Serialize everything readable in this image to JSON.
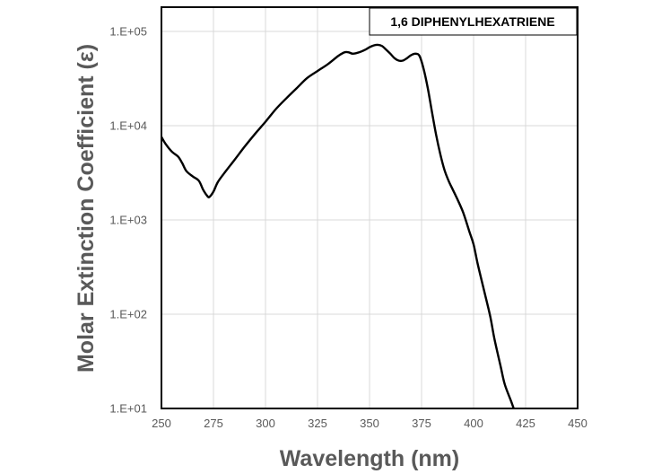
{
  "chart_data": {
    "type": "line",
    "title": "1,6 DIPHENYLHEXATRIENE",
    "xlabel": "Wavelength (nm)",
    "ylabel": "Molar Extinction Coefficient  (ε)",
    "xlim": [
      250,
      450
    ],
    "ylim": [
      10,
      200000
    ],
    "yscale": "log",
    "x_ticks": [
      250,
      275,
      300,
      325,
      350,
      375,
      400,
      425,
      450
    ],
    "y_ticks": [
      10,
      100,
      1000,
      10000,
      100000
    ],
    "x_tick_labels": [
      "250",
      "275",
      "300",
      "325",
      "350",
      "375",
      "400",
      "425",
      "450"
    ],
    "y_tick_labels": [
      "1.E+01",
      "1.E+02",
      "1.E+03",
      "1.E+04",
      "1.E+05"
    ],
    "grid": true,
    "legend_position": "top-right",
    "line_color": "#000000",
    "grid_color": "#d9d9d9",
    "series": [
      {
        "name": "1,6 DIPHENYLHEXATRIENE",
        "x": [
          250,
          252,
          255,
          258,
          260,
          262,
          265,
          268,
          270,
          272,
          273,
          275,
          277,
          280,
          285,
          290,
          295,
          300,
          305,
          310,
          315,
          320,
          325,
          330,
          335,
          338,
          340,
          342,
          345,
          348,
          350,
          352,
          354,
          356,
          358,
          360,
          362,
          364,
          366,
          368,
          370,
          372,
          374,
          376,
          378,
          380,
          382,
          384,
          386,
          388,
          390,
          392,
          395,
          398,
          400,
          402,
          405,
          408,
          410,
          413,
          415,
          418,
          420
        ],
        "y": [
          7600,
          6400,
          5300,
          4700,
          4000,
          3300,
          2900,
          2600,
          2100,
          1800,
          1750,
          2000,
          2500,
          3100,
          4300,
          6000,
          8200,
          11000,
          15000,
          19500,
          25000,
          32000,
          38000,
          45000,
          55000,
          60000,
          60000,
          58000,
          60000,
          64000,
          68000,
          71000,
          72000,
          70000,
          64000,
          58000,
          52000,
          49000,
          49000,
          52000,
          56000,
          58000,
          55000,
          40000,
          25000,
          14000,
          8000,
          5000,
          3400,
          2600,
          2100,
          1700,
          1200,
          750,
          550,
          340,
          180,
          95,
          55,
          28,
          18,
          12,
          9
        ]
      }
    ]
  }
}
